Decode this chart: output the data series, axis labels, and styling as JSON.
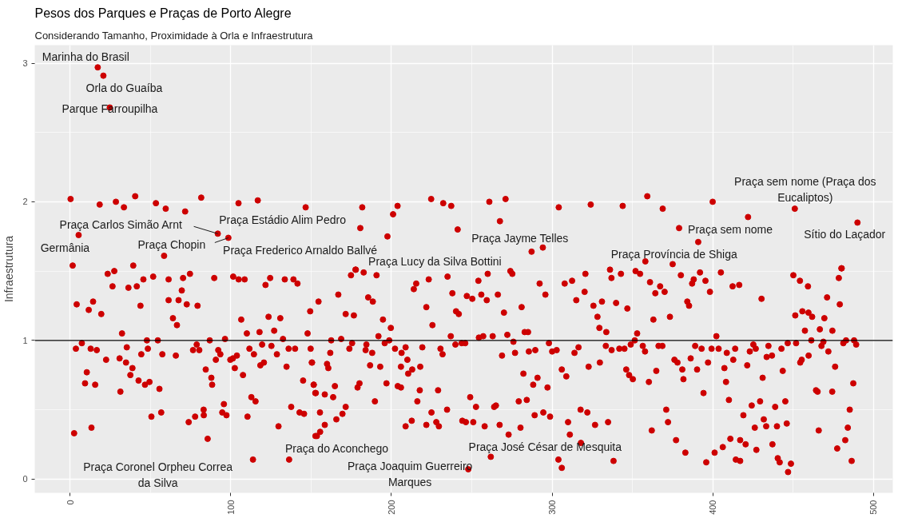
{
  "chart_data": {
    "type": "scatter",
    "title": "Pesos dos Parques e Praças de Porto Alegre",
    "subtitle": "Considerando Tamanho, Proximidade à Orla e Infraestrutura",
    "ylabel": "Infraestrutura",
    "color": "#cd0000",
    "marker": "circle",
    "grid": true,
    "xlim": [
      -22,
      512
    ],
    "ylim": [
      -0.1,
      3.13
    ],
    "xticks": [
      0,
      100,
      200,
      300,
      400,
      500
    ],
    "yticks": [
      0,
      1,
      2,
      3
    ],
    "ref_lines": [
      {
        "axis": "y",
        "value": 1,
        "color": "#000000"
      }
    ],
    "x": [
      17.2,
      20.7,
      24.7,
      5.3,
      91.9,
      98.5,
      180.6,
      197.5,
      287.2,
      241.2,
      358,
      379,
      451,
      490,
      113.8,
      136.3,
      247.8,
      261.8,
      4.1,
      3.6,
      7.3,
      12.8,
      16.6,
      11.6,
      14.3,
      19.4,
      10.4,
      9.3,
      15.6,
      2.5,
      13.3,
      22.4,
      32.3,
      35.3,
      30.8,
      34.8,
      38.8,
      37.5,
      31.3,
      42.6,
      46.6,
      49.4,
      50.6,
      56.7,
      55.6,
      47.8,
      48.4,
      44.3,
      54.6,
      57.4,
      65.8,
      43.8,
      36.3,
      41.5,
      45.6,
      51.7,
      26.4,
      23.4,
      27.5,
      61.3,
      67.5,
      64,
      66.5,
      69.5,
      72.6,
      79.3,
      70.3,
      74.6,
      61.3,
      89.7,
      76.5,
      78.8,
      80.4,
      86.9,
      84.4,
      87.9,
      88.4,
      73.8,
      77.8,
      83.1,
      83.2,
      85.6,
      92.2,
      93.5,
      90.7,
      96.4,
      99.7,
      101.3,
      103.8,
      102.5,
      107.6,
      95.7,
      94.7,
      97.3,
      110.4,
      112.8,
      115.4,
      106.5,
      110,
      111.6,
      114.4,
      117.9,
      119.5,
      118.4,
      120.6,
      123.5,
      127,
      130.8,
      132.5,
      125.3,
      128.7,
      136,
      140,
      134.7,
      129.7,
      137.6,
      142.8,
      145.6,
      145,
      149.4,
      147.8,
      149.7,
      150.4,
      151.6,
      152.6,
      152.7,
      101.5,
      104.9,
      108.6,
      121.6,
      124.5,
      133.6,
      139,
      141.5,
      174.8,
      177.8,
      182.7,
      190.7,
      166.9,
      154.6,
      171.5,
      176.6,
      185.5,
      188.4,
      194.7,
      199.6,
      191.9,
      168.7,
      162.5,
      175.5,
      173.8,
      184.4,
      183.9,
      188,
      195.8,
      198.6,
      161.9,
      150.6,
      159.9,
      160.7,
      186.7,
      193,
      151.6,
      152.9,
      158.5,
      163.7,
      164.8,
      178.9,
      180.1,
      189.7,
      196.9,
      155.5,
      158.5,
      155.6,
      153.6,
      165.7,
      169.5,
      171.5,
      202.2,
      206.3,
      208.8,
      209.9,
      205.9,
      210.4,
      212.9,
      217.9,
      219.2,
      203.9,
      205.9,
      217.6,
      216.1,
      229,
      224.9,
      208.8,
      212.6,
      221.7,
      227.9,
      229.5,
      234.6,
      230.5,
      231.8,
      236.9,
      239.8,
      243.7,
      245.9,
      225.5,
      221.7,
      215.4,
      213.9,
      223.2,
      234.9,
      237.9,
      240.2,
      241.9,
      246.9,
      250.3,
      254.1,
      255.9,
      259.3,
      259.9,
      266.2,
      270,
      274,
      275.2,
      281,
      254.4,
      257.1,
      263,
      272.1,
      275.9,
      268.8,
      276.9,
      282.9,
      285,
      285.5,
      289.5,
      249,
      252.6,
      250.9,
      244.1,
      246.3,
      258,
      263.9,
      265,
      267.3,
      272.9,
      280.3,
      279.2,
      284.2,
      288.2,
      290.9,
      282.1,
      289.1,
      294.5,
      298.7,
      297.1,
      292.2,
      295.8,
      298,
      300,
      302.8,
      306,
      308.8,
      307.8,
      312.4,
      315,
      320.2,
      320.7,
      313.9,
      316.4,
      322.7,
      329.7,
      325.7,
      328.2,
      329.4,
      317.7,
      321.9,
      309.9,
      311,
      326.7,
      303.9,
      306,
      317.9,
      336,
      336.9,
      342.8,
      351.9,
      354.7,
      360.9,
      364.2,
      367.2,
      370,
      380.1,
      387.1,
      388.1,
      392,
      395.4,
      398.2,
      405,
      412.3,
      416.4,
      430.3,
      450.1,
      454.2,
      459.2,
      478.4,
      480,
      471.1,
      479,
      331,
      339.8,
      346.8,
      333.7,
      352.9,
      351.4,
      348.9,
      363,
      373.3,
      384.1,
      385.2,
      333.4,
      337,
      341.8,
      345,
      356.4,
      357.8,
      366.2,
      368.6,
      376.1,
      378,
      386.2,
      389,
      393,
      397,
      399.2,
      402.2,
      403.6,
      408.7,
      412.7,
      413.9,
      425.2,
      423,
      426.7,
      434.6,
      433.5,
      436.8,
      442.7,
      446.6,
      451.8,
      451.3,
      455.7,
      459.5,
      461.8,
      457.3,
      466.6,
      469.4,
      474.4,
      461.3,
      468.8,
      467.6,
      471.9,
      459.6,
      455.3,
      454.4,
      476.1,
      481.2,
      482.9,
      487.9,
      489.2,
      346.1,
      347.9,
      350.2,
      360.2,
      364.8,
      381,
      381.7,
      390.2,
      394.2,
      407.2,
      408.2,
      410,
      421.4,
      431,
      443.5,
      424.2,
      429.4,
      438.8,
      445.1,
      464.2,
      465.2,
      474.3,
      487.4,
      485.2,
      484,
      482.4,
      477.4,
      486.4,
      465.9,
      446,
      439.9,
      431.7,
      433.2,
      426.1,
      419,
      410.9,
      417,
      420.4,
      427.1,
      437.1,
      406.2,
      401.1,
      395.9,
      414.3,
      417,
      440.4,
      441.6,
      448.6,
      446.8,
      382.9,
      377.1,
      371,
      372.1,
      362,
      338.2,
      334.8,
      0.3,
      18.4,
      28.5,
      33.5,
      40.5,
      53.4,
      59.5,
      71.6,
      81.6,
      104.8,
      116.8,
      146.6,
      1.6,
      39.3,
      58.5,
      181.8,
      201,
      203.8,
      224.7,
      232.2,
      237.2,
      260.9,
      271,
      304.1,
      324,
      267.5,
      294.2,
      343.9,
      359.2,
      368.8,
      399.9,
      421.9,
      390.9,
      375,
      480.2,
      177.6
    ],
    "values": [
      2.97,
      2.91,
      2.68,
      1.76,
      1.77,
      1.74,
      1.81,
      1.75,
      1.64,
      1.8,
      1.57,
      1.81,
      1.95,
      1.85,
      0.14,
      0.14,
      0.07,
      0.16,
      1.26,
      0.94,
      0.98,
      0.94,
      0.93,
      1.22,
      1.28,
      1.19,
      0.77,
      0.69,
      0.68,
      0.33,
      0.37,
      0.86,
      1.05,
      0.95,
      0.87,
      0.84,
      0.8,
      0.75,
      0.63,
      0.71,
      0.68,
      0.7,
      0.45,
      0.48,
      0.65,
      1,
      0.94,
      0.9,
      1,
      0.9,
      0.89,
      1.25,
      1.38,
      1.39,
      1.44,
      1.46,
      1.39,
      1.48,
      1.5,
      1.29,
      1.29,
      1.16,
      1.11,
      1.36,
      1.26,
      1.25,
      1.45,
      1.48,
      1.44,
      1.45,
      0.93,
      0.97,
      0.93,
      1,
      0.79,
      0.73,
      0.68,
      0.41,
      0.45,
      0.5,
      0.46,
      0.29,
      0.93,
      0.9,
      0.86,
      1.01,
      0.86,
      0.87,
      0.89,
      0.8,
      0.75,
      0.54,
      0.48,
      0.46,
      0.45,
      0.59,
      0.56,
      1.15,
      1.05,
      0.94,
      0.9,
      1.06,
      0.97,
      0.82,
      0.84,
      1.17,
      1.07,
      1.16,
      1.01,
      0.96,
      0.9,
      0.94,
      0.94,
      0.81,
      0.38,
      0.52,
      0.48,
      0.47,
      0.71,
      1.21,
      1.05,
      0.94,
      0.84,
      0.68,
      0.62,
      0.31,
      1.46,
      1.44,
      1.44,
      1.4,
      1.45,
      1.44,
      1.44,
      1.41,
      1.47,
      1.51,
      1.49,
      1.47,
      1.33,
      1.28,
      1.19,
      1.18,
      1.31,
      1.28,
      1.15,
      1.09,
      1.03,
      1.01,
      1,
      0.98,
      0.94,
      0.97,
      0.93,
      0.91,
      0.98,
      1,
      0.91,
      0.84,
      0.83,
      0.8,
      0.82,
      0.81,
      0.68,
      0.62,
      0.61,
      0.59,
      0.67,
      0.66,
      0.69,
      0.56,
      0.69,
      0.48,
      0.39,
      0.34,
      0.31,
      0.43,
      0.47,
      0.52,
      0.94,
      0.91,
      0.95,
      0.86,
      0.81,
      0.76,
      0.79,
      0.81,
      0.95,
      0.67,
      0.66,
      0.64,
      0.56,
      0.64,
      0.48,
      0.38,
      0.42,
      0.39,
      0.41,
      0.38,
      0.5,
      0.94,
      0.9,
      1.03,
      0.97,
      0.98,
      0.98,
      1.11,
      1.24,
      1.41,
      1.37,
      1.44,
      1.46,
      1.34,
      1.21,
      1.19,
      1.32,
      1.3,
      1.43,
      1.33,
      1.29,
      1.48,
      1.33,
      1.2,
      1.5,
      1.48,
      1.24,
      1.02,
      1.03,
      1.03,
      1.04,
      0.99,
      0.89,
      0.91,
      1.06,
      1.06,
      0.92,
      0.93,
      0.59,
      0.52,
      0.41,
      0.42,
      0.41,
      0.38,
      0.52,
      0.53,
      0.39,
      0.32,
      0.37,
      0.56,
      0.57,
      0.68,
      0.73,
      0.76,
      0.46,
      0.48,
      0.45,
      0.66,
      1.41,
      1.33,
      0.98,
      0.92,
      0.93,
      0.79,
      0.74,
      1.41,
      1.43,
      1.29,
      1.35,
      1.48,
      0.91,
      0.95,
      0.81,
      0.84,
      1.25,
      1.17,
      1.09,
      0.5,
      0.48,
      0.41,
      0.32,
      0.39,
      0.14,
      0.08,
      0.26,
      1.51,
      1.45,
      1.48,
      1.5,
      1.48,
      1.42,
      1.34,
      1.39,
      1.35,
      1.47,
      1.41,
      1.44,
      1.49,
      1.43,
      1.35,
      1.49,
      1.39,
      1.4,
      1.3,
      1.47,
      1.43,
      1.39,
      1.45,
      1.52,
      1.31,
      1.26,
      1.28,
      1.27,
      1.23,
      1.06,
      1.05,
      1,
      0.97,
      1.15,
      1.17,
      1.28,
      1.25,
      0.96,
      0.93,
      0.94,
      0.94,
      0.96,
      0.92,
      0.96,
      0.96,
      0.86,
      0.84,
      0.87,
      0.96,
      0.94,
      0.84,
      0.94,
      1.03,
      0.94,
      0.91,
      0.86,
      0.94,
      0.97,
      0.92,
      0.94,
      0.96,
      0.88,
      0.89,
      0.94,
      0.98,
      0.98,
      1.18,
      1.21,
      1.2,
      1.17,
      1.07,
      1.08,
      1.16,
      1.07,
      1,
      0.99,
      0.96,
      0.92,
      0.89,
      0.86,
      0.84,
      0.81,
      0.98,
      1,
      1,
      0.97,
      0.79,
      0.75,
      0.72,
      0.7,
      0.78,
      0.79,
      0.72,
      0.79,
      0.62,
      0.8,
      0.7,
      0.57,
      0.82,
      0.73,
      0.78,
      0.53,
      0.56,
      0.52,
      0.56,
      0.64,
      0.63,
      0.63,
      0.69,
      0.5,
      0.37,
      0.28,
      0.22,
      0.13,
      0.35,
      0.4,
      0.38,
      0.43,
      0.38,
      0.37,
      0.46,
      0.29,
      0.28,
      0.25,
      0.21,
      0.25,
      0.23,
      0.19,
      0.12,
      0.14,
      0.13,
      0.15,
      0.12,
      0.11,
      0.05,
      0.19,
      0.28,
      0.5,
      0.41,
      0.35,
      0.13,
      0.41,
      2.02,
      1.98,
      2,
      1.96,
      2.04,
      1.99,
      1.95,
      1.93,
      2.03,
      1.99,
      2.01,
      1.96,
      1.54,
      1.54,
      1.61,
      1.96,
      1.91,
      1.97,
      2.02,
      1.99,
      1.97,
      2,
      2.02,
      1.96,
      1.98,
      1.86,
      1.67,
      1.97,
      2.04,
      1.95,
      2,
      1.89,
      1.71,
      1.55,
      1.52,
      1.51
    ],
    "annotations": [
      {
        "text": "Marinha do Brasil",
        "x": 17.2,
        "y": 2.97
      },
      {
        "text": "Orla do Guaíba",
        "x": 20.7,
        "y": 2.91
      },
      {
        "text": "Parque Farroupilha",
        "x": 24.7,
        "y": 2.68
      },
      {
        "text": "Praça Carlos Simão Arnt",
        "x": 91.9,
        "y": 1.77
      },
      {
        "text": "Praça Estádio Alim Pedro",
        "x": 180.6,
        "y": 1.81
      },
      {
        "text": "Praça Chopin",
        "x": 98.5,
        "y": 1.74
      },
      {
        "text": "Germânia",
        "x": 5.3,
        "y": 1.76
      },
      {
        "text": "Praça Frederico Arnaldo Ballvé",
        "x": 197.5,
        "y": 1.75
      },
      {
        "text": "Praça Lucy da Silva Bottini",
        "x": 287.2,
        "y": 1.64
      },
      {
        "text": "Praça Jayme Telles",
        "x": 241.2,
        "y": 1.8
      },
      {
        "text": "Praça Província de Shiga",
        "x": 358,
        "y": 1.57
      },
      {
        "text": "Praça sem nome",
        "x": 379,
        "y": 1.81
      },
      {
        "text": "Praça sem nome (Praça dos\nEucaliptos)",
        "x": 451,
        "y": 1.95
      },
      {
        "text": "Sítio do Laçador",
        "x": 490,
        "y": 1.85
      },
      {
        "text": "Praça Coronel Orpheu Correa\nda Silva",
        "x": 113.8,
        "y": 0.14
      },
      {
        "text": "Praça do Aconchego",
        "x": 136.3,
        "y": 0.14
      },
      {
        "text": "Praça Joaquim Guerreiro\nMarques",
        "x": 247.8,
        "y": 0.07
      },
      {
        "text": "Praça José César de Mesquita",
        "x": 261.8,
        "y": 0.16
      }
    ]
  }
}
